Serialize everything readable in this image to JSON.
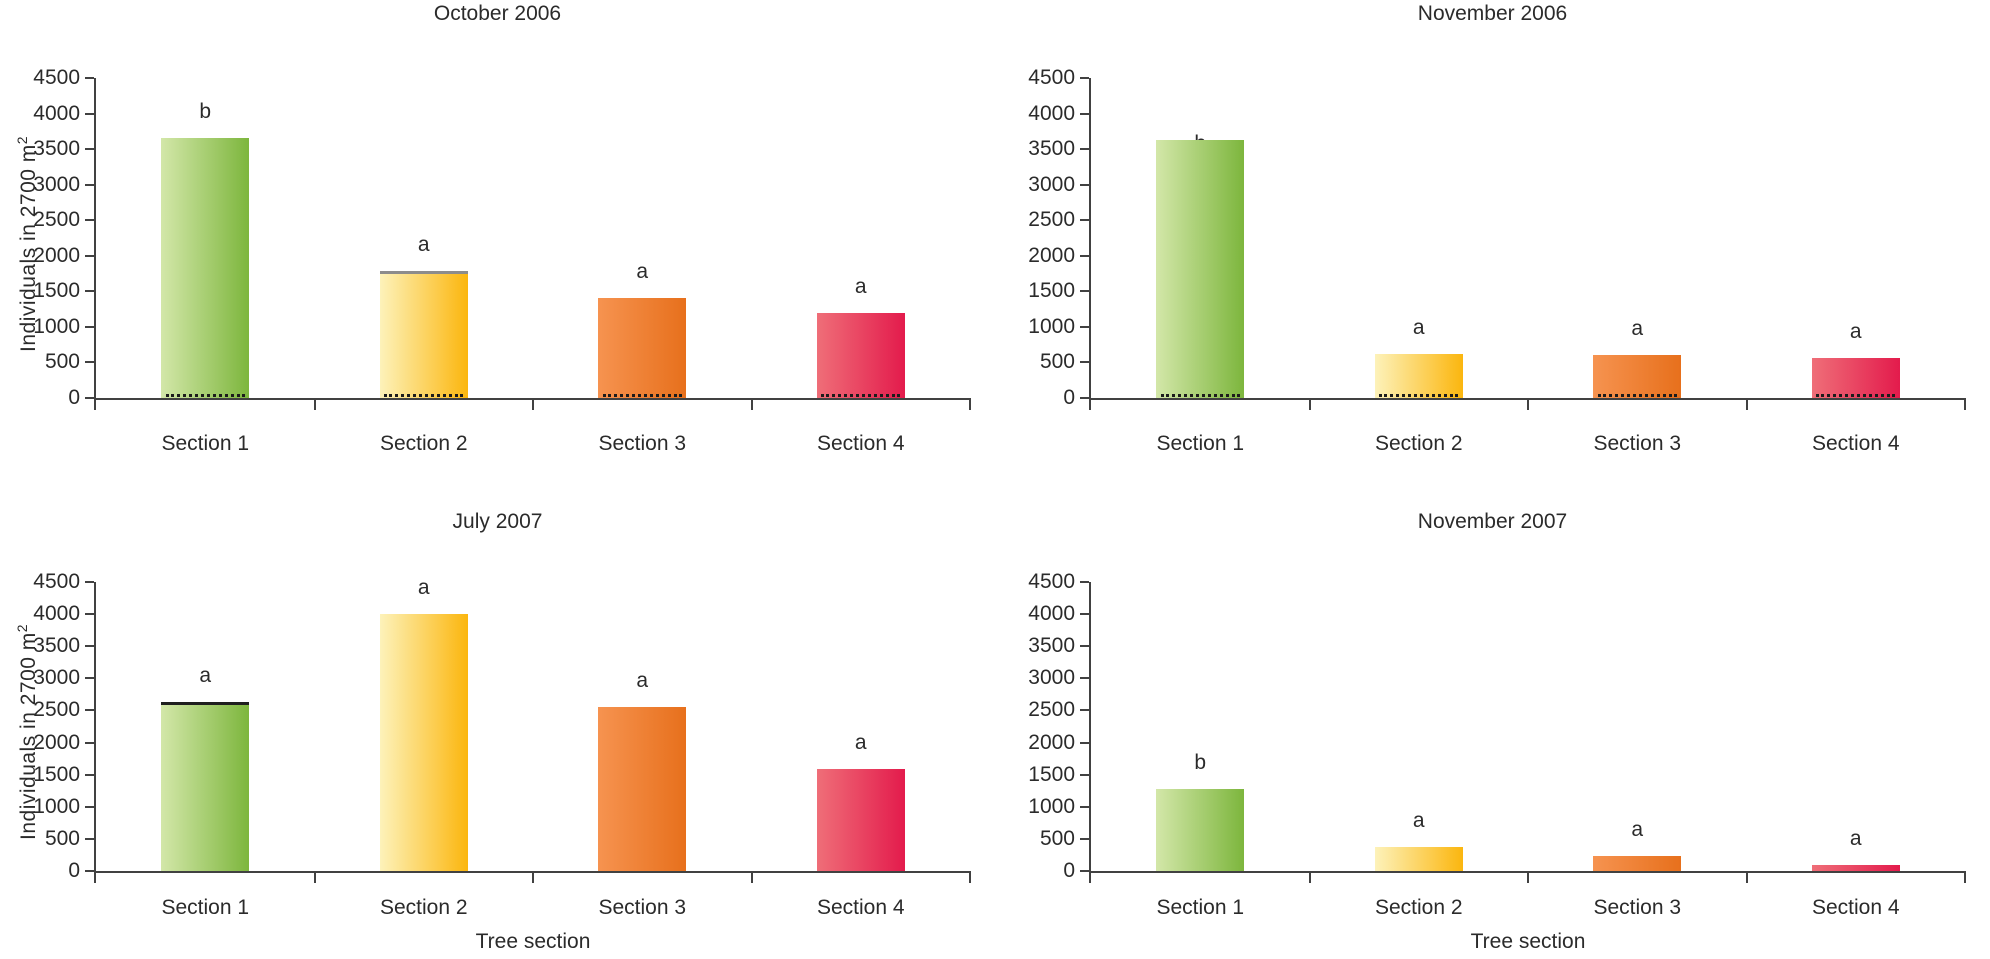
{
  "axes": {
    "ylabel_text": "Individuals in 2700 m",
    "ylabel_sup": "2",
    "xlabel": "Tree section",
    "ylim": [
      0,
      4500
    ],
    "ytick_step": 500,
    "yticks": [
      "0",
      "500",
      "1000",
      "1500",
      "2000",
      "2500",
      "3000",
      "3500",
      "4000",
      "4500"
    ],
    "grid": "off",
    "legend": "none"
  },
  "chart_data": [
    {
      "type": "bar",
      "title": "October 2006",
      "categories": [
        "Section 1",
        "Section 2",
        "Section 3",
        "Section 4"
      ],
      "values": [
        3650,
        1780,
        1410,
        1200
      ],
      "sig_labels": [
        "b",
        "a",
        "a",
        "a"
      ],
      "show_y_axis_title": true,
      "show_x_axis_title": false,
      "bar_base_dotted": true,
      "bar_top_lines": [
        null,
        "#8c8c8c",
        null,
        null
      ],
      "sig_label_behind_bar": [
        false,
        false,
        false,
        false
      ]
    },
    {
      "type": "bar",
      "title": "November 2006",
      "categories": [
        "Section 1",
        "Section 2",
        "Section 3",
        "Section 4"
      ],
      "values": [
        3630,
        620,
        600,
        560
      ],
      "sig_labels": [
        "b",
        "a",
        "a",
        "a"
      ],
      "show_y_axis_title": false,
      "show_x_axis_title": false,
      "bar_base_dotted": true,
      "bar_top_lines": [
        null,
        null,
        null,
        null
      ],
      "sig_label_behind_bar": [
        true,
        false,
        false,
        false
      ]
    },
    {
      "type": "bar",
      "title": "July 2007",
      "categories": [
        "Section 1",
        "Section 2",
        "Section 3",
        "Section 4"
      ],
      "values": [
        2630,
        4000,
        2550,
        1590
      ],
      "sig_labels": [
        "a",
        "a",
        "a",
        "a"
      ],
      "show_y_axis_title": true,
      "show_x_axis_title": true,
      "bar_base_dotted": false,
      "bar_top_lines": [
        "#1f1f1f",
        null,
        null,
        null
      ],
      "sig_label_behind_bar": [
        false,
        false,
        false,
        false
      ]
    },
    {
      "type": "bar",
      "title": "November 2007",
      "categories": [
        "Section 1",
        "Section 2",
        "Section 3",
        "Section 4"
      ],
      "values": [
        1270,
        380,
        230,
        90
      ],
      "sig_labels": [
        "b",
        "a",
        "a",
        "a"
      ],
      "show_y_axis_title": false,
      "show_x_axis_title": true,
      "bar_base_dotted": false,
      "bar_top_lines": [
        null,
        null,
        null,
        null
      ],
      "sig_label_behind_bar": [
        false,
        false,
        false,
        false
      ]
    }
  ],
  "style": {
    "bar_gradients": [
      {
        "section": "Section 1",
        "from": "#d3e7a9",
        "to": "#7db63d"
      },
      {
        "section": "Section 2",
        "from": "#fdf2ba",
        "to": "#fbb60e"
      },
      {
        "section": "Section 3",
        "from": "#f69350",
        "to": "#e7701c"
      },
      {
        "section": "Section 4",
        "from": "#ef6e78",
        "to": "#e31b4c"
      }
    ],
    "axis_color": "#414141",
    "text_color": "#2b2b2b",
    "background": "#ffffff"
  }
}
